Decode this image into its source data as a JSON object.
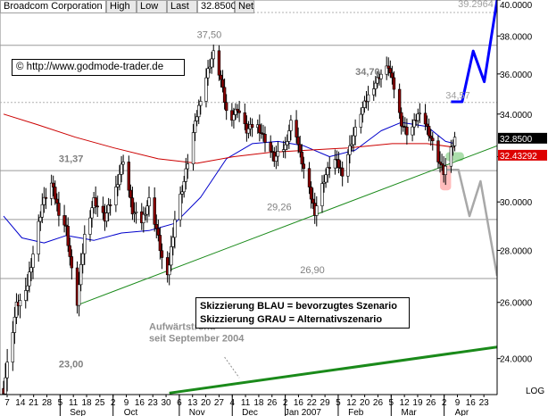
{
  "header": {
    "name": "Broadcom Corporation",
    "high_label": "High",
    "low_label": "Low",
    "last_label": "Last",
    "last_value": "32.8500",
    "net_label": "Net"
  },
  "copyright": "© http://www.godmode-trader.de",
  "legend": {
    "blue_line": "Skizzierung BLAU = bevorzugtes Szenario",
    "gray_line": "Skizzierung GRAU = Alternativszenario"
  },
  "annotations": [
    {
      "text": "37,50",
      "x": "2006-11-15",
      "y": 37.9,
      "color": "#808080",
      "bold": false
    },
    {
      "text": "34,70",
      "x": "2007-02-09",
      "y": 35.95,
      "color": "#808080",
      "bold": true
    },
    {
      "text": "34,57",
      "x": "2007-03-30",
      "y": 34.75,
      "color": "#a0a0a0",
      "bold": false
    },
    {
      "text": "31,37",
      "x": "2006-09-01",
      "y": 31.75,
      "color": "#808080",
      "bold": true
    },
    {
      "text": "29,26",
      "x": "2006-12-23",
      "y": 29.65,
      "color": "#808080",
      "bold": false
    },
    {
      "text": "26,90",
      "x": "2007-01-10",
      "y": 27.1,
      "color": "#808080",
      "bold": false
    },
    {
      "text": "23,00",
      "x": "2006-09-01",
      "y": 23.7,
      "color": "#808080",
      "bold": true
    },
    {
      "text": "39.2964",
      "x": "2007-04-25",
      "y": 39.6,
      "color": "#a0a0a0",
      "bold": false
    }
  ],
  "trend_note": {
    "line1": "Aufwärtstrend",
    "line2": "seit September 2004",
    "x": "2006-10-20",
    "y1": 25.0,
    "y2": 24.6
  },
  "chart_data": {
    "type": "line",
    "title": "Broadcom Corporation",
    "y_axis": {
      "ticks": [
        "24.0000",
        "26.0000",
        "28.0000",
        "30.0000",
        "32.0000",
        "34.0000",
        "36.0000",
        "38.0000",
        "40.0000"
      ],
      "ylim": [
        22.8,
        40.0
      ],
      "scale_label": "LOG"
    },
    "x_axis": {
      "day_ticks": [
        "7",
        "14",
        "21",
        "28",
        "5",
        "11",
        "18",
        "25",
        "2",
        "9",
        "16",
        "23",
        "30",
        "6",
        "13",
        "20",
        "27",
        "4",
        "11",
        "18",
        "26",
        "2",
        "16",
        "22",
        "29",
        "5",
        "12",
        "20",
        "26",
        "5",
        "12",
        "19",
        "26",
        "2",
        "9",
        "16",
        "23"
      ],
      "month_labels": [
        "Sep",
        "Oct",
        "Nov",
        "Dec",
        "Jan 2007",
        "Feb",
        "Mar",
        "Apr"
      ],
      "range": [
        "2006-08-02",
        "2007-04-27"
      ]
    },
    "horizontal_levels": [
      {
        "value": 39.2964,
        "style": "dotted"
      },
      {
        "value": 37.5,
        "style": "solid"
      },
      {
        "value": 34.57,
        "style": "dotted"
      },
      {
        "value": 31.37,
        "style": "solid"
      },
      {
        "value": 29.26,
        "style": "solid"
      },
      {
        "value": 26.9,
        "style": "solid"
      }
    ],
    "price_series": [
      [
        "2006-08-02",
        23.0
      ],
      [
        "2006-08-05",
        24.2
      ],
      [
        "2006-08-09",
        25.9
      ],
      [
        "2006-08-14",
        26.3
      ],
      [
        "2006-08-19",
        28.3
      ],
      [
        "2006-08-23",
        29.9
      ],
      [
        "2006-08-28",
        30.8
      ],
      [
        "2006-09-01",
        29.6
      ],
      [
        "2006-09-05",
        28.9
      ],
      [
        "2006-09-08",
        27.2
      ],
      [
        "2006-09-11",
        26.0
      ],
      [
        "2006-09-15",
        28.6
      ],
      [
        "2006-09-20",
        30.1
      ],
      [
        "2006-09-26",
        29.3
      ],
      [
        "2006-10-02",
        30.6
      ],
      [
        "2006-10-06",
        31.9
      ],
      [
        "2006-10-11",
        29.6
      ],
      [
        "2006-10-16",
        29.2
      ],
      [
        "2006-10-20",
        30.1
      ],
      [
        "2006-10-24",
        28.9
      ],
      [
        "2006-10-27",
        27.7
      ],
      [
        "2006-10-30",
        26.9
      ],
      [
        "2006-11-03",
        29.3
      ],
      [
        "2006-11-08",
        30.9
      ],
      [
        "2006-11-13",
        33.1
      ],
      [
        "2006-11-17",
        34.8
      ],
      [
        "2006-11-21",
        36.2
      ],
      [
        "2006-11-24",
        37.1
      ],
      [
        "2006-11-28",
        35.7
      ],
      [
        "2006-12-02",
        33.6
      ],
      [
        "2006-12-07",
        34.3
      ],
      [
        "2006-12-12",
        33.2
      ],
      [
        "2006-12-17",
        33.6
      ],
      [
        "2006-12-22",
        32.8
      ],
      [
        "2006-12-27",
        31.9
      ],
      [
        "2007-01-02",
        32.5
      ],
      [
        "2007-01-06",
        34.0
      ],
      [
        "2007-01-10",
        32.1
      ],
      [
        "2007-01-14",
        30.8
      ],
      [
        "2007-01-18",
        29.6
      ],
      [
        "2007-01-23",
        31.0
      ],
      [
        "2007-01-28",
        32.0
      ],
      [
        "2007-02-02",
        31.3
      ],
      [
        "2007-02-07",
        32.7
      ],
      [
        "2007-02-12",
        34.1
      ],
      [
        "2007-02-17",
        35.1
      ],
      [
        "2007-02-22",
        35.9
      ],
      [
        "2007-02-27",
        36.4
      ],
      [
        "2007-03-02",
        35.3
      ],
      [
        "2007-03-06",
        33.6
      ],
      [
        "2007-03-10",
        33.0
      ],
      [
        "2007-03-15",
        34.0
      ],
      [
        "2007-03-19",
        33.6
      ],
      [
        "2007-03-22",
        32.9
      ],
      [
        "2007-03-26",
        31.9
      ],
      [
        "2007-03-29",
        31.3
      ],
      [
        "2007-04-02",
        32.3
      ],
      [
        "2007-04-04",
        32.85
      ]
    ],
    "series": [
      {
        "name": "",
        "color": "#0000cc",
        "points": [
          [
            "2006-08-02",
            29.4
          ],
          [
            "2006-08-12",
            28.5
          ],
          [
            "2006-08-24",
            28.3
          ],
          [
            "2006-09-05",
            28.6
          ],
          [
            "2006-09-20",
            28.4
          ],
          [
            "2006-10-05",
            28.7
          ],
          [
            "2006-10-20",
            28.8
          ],
          [
            "2006-11-03",
            29.1
          ],
          [
            "2006-11-17",
            30.2
          ],
          [
            "2006-12-01",
            31.9
          ],
          [
            "2006-12-15",
            32.6
          ],
          [
            "2006-12-29",
            32.7
          ],
          [
            "2007-01-12",
            32.5
          ],
          [
            "2007-01-26",
            32.0
          ],
          [
            "2007-02-09",
            32.3
          ],
          [
            "2007-02-23",
            33.2
          ],
          [
            "2007-03-06",
            33.6
          ],
          [
            "2007-03-20",
            33.4
          ],
          [
            "2007-03-30",
            32.7
          ],
          [
            "2007-04-04",
            32.6
          ]
        ]
      },
      {
        "name": "",
        "color": "#cc0000",
        "points": [
          [
            "2006-08-02",
            34.0
          ],
          [
            "2006-08-20",
            33.5
          ],
          [
            "2006-09-10",
            32.9
          ],
          [
            "2006-10-01",
            32.4
          ],
          [
            "2006-10-25",
            31.9
          ],
          [
            "2006-11-15",
            31.7
          ],
          [
            "2006-12-05",
            32.0
          ],
          [
            "2006-12-25",
            32.2
          ],
          [
            "2007-01-15",
            32.3
          ],
          [
            "2007-02-05",
            32.4
          ],
          [
            "2007-03-01",
            32.6
          ],
          [
            "2007-03-20",
            32.6
          ],
          [
            "2007-04-04",
            32.43
          ]
        ]
      },
      {
        "name": "",
        "color": "#1a8a1a",
        "points": [
          [
            "2006-09-11",
            25.9
          ],
          [
            "2007-04-27",
            32.5
          ]
        ]
      },
      {
        "name": "",
        "color": "#1a8a1a",
        "points": [
          [
            "2006-10-31",
            22.85
          ],
          [
            "2007-04-27",
            24.4
          ]
        ]
      },
      {
        "name": "",
        "color": "#0000ff",
        "points": [
          [
            "2007-04-02",
            34.6
          ],
          [
            "2007-04-08",
            34.6
          ],
          [
            "2007-04-14",
            37.2
          ],
          [
            "2007-04-20",
            35.6
          ],
          [
            "2007-04-27",
            40.0
          ]
        ]
      },
      {
        "name": "",
        "color": "#a8a8a8",
        "points": [
          [
            "2007-03-29",
            31.4
          ],
          [
            "2007-04-06",
            31.4
          ],
          [
            "2007-04-12",
            29.4
          ],
          [
            "2007-04-18",
            30.9
          ],
          [
            "2007-04-27",
            27.0
          ]
        ]
      }
    ],
    "current_price_tags": [
      {
        "label": "32.8500",
        "value": 32.85,
        "color": "#000000"
      },
      {
        "label": "32.43292",
        "value": 32.43292,
        "color": "#dd0000"
      }
    ],
    "highlight_zones": [
      {
        "x1": "2007-03-30",
        "x2": "2007-04-09",
        "y1": 31.8,
        "y2": 32.2,
        "color": "#9ed89e"
      },
      {
        "x1": "2007-03-27",
        "x2": "2007-04-02",
        "y1": 30.5,
        "y2": 31.6,
        "color": "#ffb0b0"
      }
    ]
  }
}
